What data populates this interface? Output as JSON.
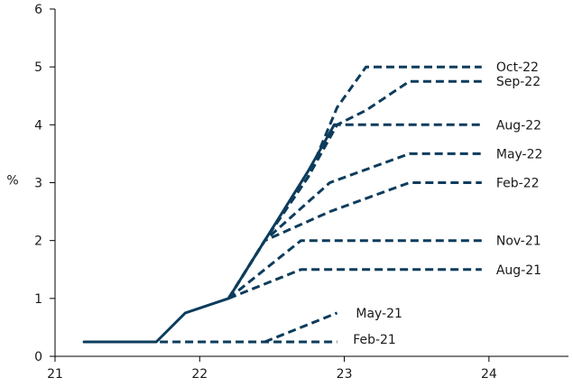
{
  "chart_data": {
    "type": "line",
    "title": "",
    "xlabel": "",
    "ylabel": "%",
    "xlim": [
      21,
      24.5
    ],
    "ylim": [
      0,
      6
    ],
    "x_ticks": [
      21,
      22,
      23,
      24
    ],
    "y_ticks": [
      0,
      1,
      2,
      3,
      4,
      5,
      6
    ],
    "x_tick_labels": [
      "21",
      "22",
      "23",
      "24"
    ],
    "y_tick_labels": [
      "0",
      "1",
      "2",
      "3",
      "4",
      "5",
      "6"
    ],
    "grid": false,
    "colors": {
      "line": "#0d3c5c",
      "axis": "#000000"
    },
    "realized": {
      "x": [
        21.2,
        21.7,
        21.9,
        22.2,
        22.45,
        22.75,
        22.93
      ],
      "y": [
        0.25,
        0.25,
        0.75,
        1.0,
        2.0,
        3.2,
        4.0
      ]
    },
    "series": [
      {
        "name": "Oct-22",
        "x": [
          22.2,
          22.45,
          22.75,
          22.95,
          23.15,
          23.95
        ],
        "y": [
          1.0,
          2.0,
          3.1,
          4.3,
          5.0,
          5.0
        ]
      },
      {
        "name": "Sep-22",
        "x": [
          22.2,
          22.45,
          22.75,
          22.95,
          23.15,
          23.45,
          23.95
        ],
        "y": [
          1.0,
          2.0,
          3.1,
          4.0,
          4.25,
          4.75,
          4.75
        ]
      },
      {
        "name": "Aug-22",
        "x": [
          22.2,
          22.45,
          22.75,
          22.93,
          23.95
        ],
        "y": [
          1.0,
          2.0,
          3.1,
          4.0,
          4.0
        ]
      },
      {
        "name": "May-22",
        "x": [
          22.2,
          22.45,
          22.9,
          23.45,
          23.95
        ],
        "y": [
          1.0,
          2.0,
          3.0,
          3.5,
          3.5
        ]
      },
      {
        "name": "Feb-22",
        "x": [
          22.2,
          22.45,
          22.9,
          23.45,
          23.95
        ],
        "y": [
          1.0,
          2.0,
          2.5,
          3.0,
          3.0
        ]
      },
      {
        "name": "Nov-21",
        "x": [
          22.2,
          22.7,
          23.95
        ],
        "y": [
          1.0,
          2.0,
          2.0
        ]
      },
      {
        "name": "Aug-21",
        "x": [
          22.2,
          22.7,
          23.95
        ],
        "y": [
          1.0,
          1.5,
          1.5
        ]
      },
      {
        "name": "May-21",
        "x": [
          22.45,
          22.95
        ],
        "y": [
          0.25,
          0.75
        ]
      },
      {
        "name": "Feb-21",
        "x": [
          21.2,
          22.95
        ],
        "y": [
          0.25,
          0.25
        ]
      }
    ],
    "labels": [
      {
        "text": "Oct-22",
        "x": 24.05,
        "y": 5.0
      },
      {
        "text": "Sep-22",
        "x": 24.05,
        "y": 4.75
      },
      {
        "text": "Aug-22",
        "x": 24.05,
        "y": 4.0
      },
      {
        "text": "May-22",
        "x": 24.05,
        "y": 3.5
      },
      {
        "text": "Feb-22",
        "x": 24.05,
        "y": 3.0
      },
      {
        "text": "Nov-21",
        "x": 24.05,
        "y": 2.0
      },
      {
        "text": "Aug-21",
        "x": 24.05,
        "y": 1.5
      },
      {
        "text": "May-21",
        "x": 23.08,
        "y": 0.75
      },
      {
        "text": "Feb-21",
        "x": 23.06,
        "y": 0.3
      }
    ]
  }
}
